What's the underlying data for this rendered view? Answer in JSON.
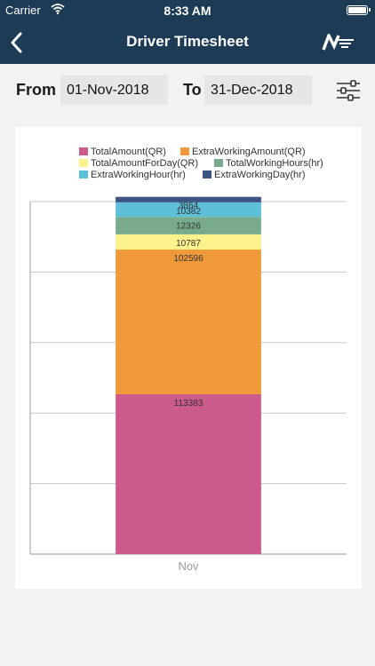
{
  "status_bar": {
    "carrier": "Carrier",
    "time": "8:33 AM"
  },
  "nav": {
    "title": "Driver Timesheet",
    "back_icon": "chevron-left-icon",
    "logo_icon": "brand-logo-icon"
  },
  "filter": {
    "from_label": "From",
    "from_value": "01-Nov-2018",
    "to_label": "To",
    "to_value": "31-Dec-2018",
    "settings_icon": "sliders-icon"
  },
  "chart_data": {
    "type": "bar",
    "stacked": true,
    "categories": [
      "Nov"
    ],
    "series": [
      {
        "name": "TotalAmount(QR)",
        "color": "#cc5b8c",
        "values": [
          113383
        ]
      },
      {
        "name": "ExtraWorkingAmount(QR)",
        "color": "#f0993a",
        "values": [
          102596
        ]
      },
      {
        "name": "TotalAmountForDay(QR)",
        "color": "#fbf28c",
        "values": [
          10787
        ]
      },
      {
        "name": "TotalWorkingHours(hr)",
        "color": "#77ab8c",
        "values": [
          12326
        ]
      },
      {
        "name": "ExtraWorkingHour(hr)",
        "color": "#5ec0d8",
        "values": [
          10382
        ]
      },
      {
        "name": "ExtraWorkingDay(hr)",
        "color": "#3c5585",
        "values": [
          3864
        ]
      }
    ],
    "ylim": [
      0,
      250000
    ],
    "grid": true,
    "legend_position": "top"
  }
}
